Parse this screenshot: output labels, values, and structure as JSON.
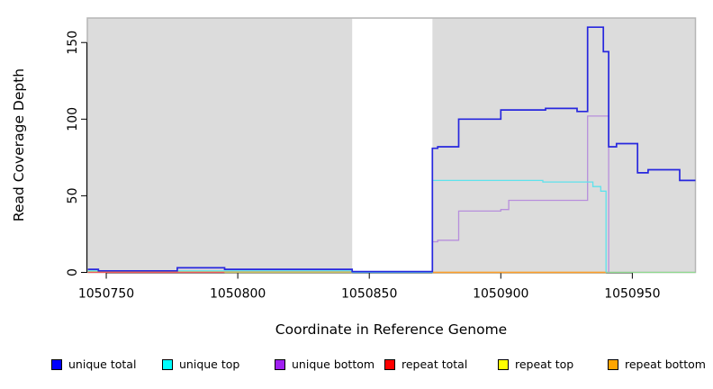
{
  "chart_data": {
    "type": "line",
    "title": "",
    "xlabel": "Coordinate in Reference Genome",
    "ylabel": "Read Coverage Depth",
    "x_ticks": [
      1050750,
      1050800,
      1050850,
      1050900,
      1050950
    ],
    "x_tick_labels": [
      "1050750",
      "1050800",
      "1050850",
      "1050900",
      "1050950"
    ],
    "y_ticks": [
      0,
      50,
      100,
      150
    ],
    "y_tick_labels": [
      "0",
      "50",
      "100",
      "150"
    ],
    "xlim": [
      1050742.8,
      1050974
    ],
    "ylim": [
      0,
      166
    ],
    "grid": false,
    "step_lines": true,
    "legend_position": "bottom",
    "panel_background": "#DCDCDC",
    "panel_border": "#B5B5B5",
    "axis_color": "#000000",
    "masked_region": {
      "x_start": 1050843.5,
      "x_end": 1050874,
      "color": "#FFFFFF"
    },
    "legend": [
      {
        "label": "unique total",
        "color": "#0000FF"
      },
      {
        "label": "unique top",
        "color": "#00FFFF"
      },
      {
        "label": "unique bottom",
        "color": "#A020F0"
      },
      {
        "label": "repeat total",
        "color": "#FF0000"
      },
      {
        "label": "repeat top",
        "color": "#FFFF00"
      },
      {
        "label": "repeat bottom",
        "color": "#FFA500"
      }
    ],
    "series": [
      {
        "name": "repeat total",
        "line_color": "#EF5A5A",
        "width": 1.2,
        "segments": [
          [
            [
              1050743,
              0
            ],
            [
              1050843.5,
              0
            ]
          ]
        ]
      },
      {
        "name": "repeat top",
        "line_color": "#F2F25A",
        "width": 1.2,
        "segments": [
          [
            [
              1050874,
              0
            ],
            [
              1050940,
              0
            ]
          ]
        ]
      },
      {
        "name": "unlabeled green baseline",
        "line_color": "#8FD98F",
        "width": 1.2,
        "segments": [
          [
            [
              1050795,
              0
            ],
            [
              1050843.5,
              0
            ]
          ],
          [
            [
              1050940,
              0
            ],
            [
              1050974,
              0
            ]
          ]
        ]
      },
      {
        "name": "repeat bottom",
        "line_color": "#FF9E2C",
        "width": 1.4,
        "segments": [
          [
            [
              1050743,
              0.7
            ],
            [
              1050795,
              0.7
            ],
            [
              1050795,
              0.4
            ],
            [
              1050843.5,
              0.4
            ]
          ],
          [
            [
              1050874,
              0
            ],
            [
              1050940,
              0
            ]
          ]
        ]
      },
      {
        "name": "unique bottom",
        "line_color": "#B78FDC",
        "width": 1.3,
        "segments": [
          [
            [
              1050874,
              20
            ],
            [
              1050876,
              20
            ],
            [
              1050876,
              21
            ],
            [
              1050884,
              21
            ],
            [
              1050884,
              40
            ],
            [
              1050900,
              40
            ],
            [
              1050900,
              41
            ],
            [
              1050903,
              41
            ],
            [
              1050903,
              47
            ],
            [
              1050933,
              47
            ],
            [
              1050933,
              102
            ],
            [
              1050941,
              102
            ],
            [
              1050941,
              0
            ]
          ]
        ]
      },
      {
        "name": "unique top",
        "line_color": "#5EE2EC",
        "width": 1.3,
        "segments": [
          [
            [
              1050743,
              1
            ],
            [
              1050843.5,
              1
            ],
            [
              1050843.5,
              0
            ],
            [
              1050874,
              0
            ],
            [
              1050874,
              60
            ],
            [
              1050916,
              60
            ],
            [
              1050916,
              59
            ],
            [
              1050935,
              59
            ],
            [
              1050935,
              56
            ],
            [
              1050938,
              56
            ],
            [
              1050938,
              53
            ],
            [
              1050940,
              53
            ],
            [
              1050940,
              0
            ]
          ]
        ]
      },
      {
        "name": "unique total",
        "line_color": "#2727DE",
        "width": 1.7,
        "segments": [
          [
            [
              1050743,
              2
            ],
            [
              1050747,
              2
            ],
            [
              1050747,
              1
            ],
            [
              1050777,
              1
            ],
            [
              1050777,
              3
            ],
            [
              1050795,
              3
            ],
            [
              1050795,
              2
            ],
            [
              1050843.5,
              2
            ],
            [
              1050843.5,
              0.5
            ],
            [
              1050874,
              0.5
            ],
            [
              1050874,
              81
            ],
            [
              1050876,
              81
            ],
            [
              1050876,
              82
            ],
            [
              1050884,
              82
            ],
            [
              1050884,
              100
            ],
            [
              1050900,
              100
            ],
            [
              1050900,
              106
            ],
            [
              1050917,
              106
            ],
            [
              1050917,
              107
            ],
            [
              1050929,
              107
            ],
            [
              1050929,
              105
            ],
            [
              1050933,
              105
            ],
            [
              1050933,
              160
            ],
            [
              1050939,
              160
            ],
            [
              1050939,
              144
            ],
            [
              1050941,
              144
            ],
            [
              1050941,
              82
            ],
            [
              1050944,
              82
            ],
            [
              1050944,
              84
            ],
            [
              1050952,
              84
            ],
            [
              1050952,
              65
            ],
            [
              1050956,
              65
            ],
            [
              1050956,
              67
            ],
            [
              1050968,
              67
            ],
            [
              1050968,
              60
            ],
            [
              1050974,
              60
            ]
          ]
        ]
      }
    ]
  }
}
